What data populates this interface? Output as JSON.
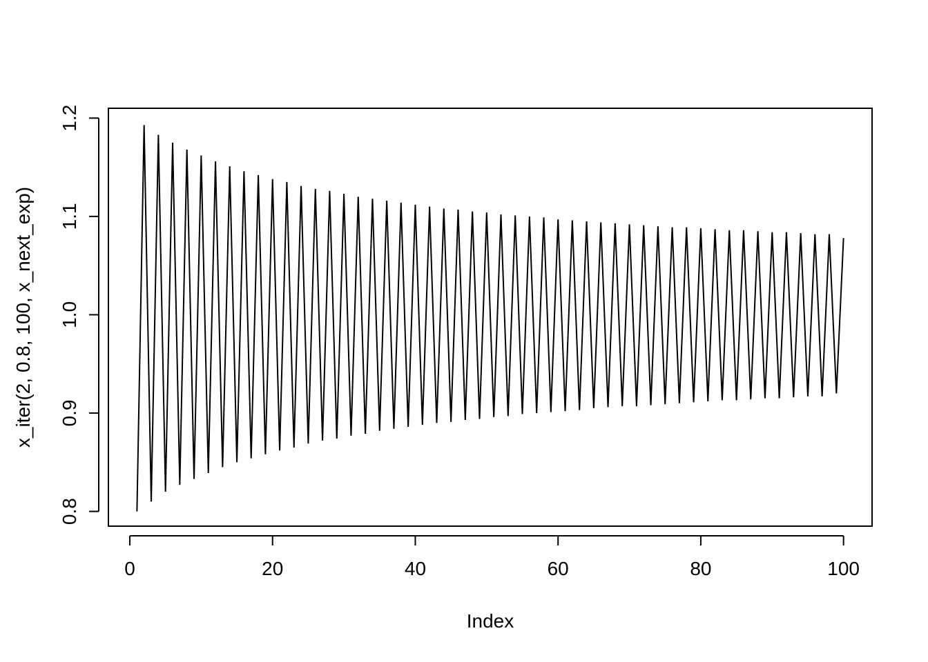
{
  "chart_data": {
    "type": "line",
    "title": "",
    "xlabel": "Index",
    "ylabel": "x_iter(2, 0.8, 100, x_next_exp)",
    "xlim": [
      -3,
      104
    ],
    "ylim": [
      0.785,
      1.21
    ],
    "xticks": [
      0,
      20,
      40,
      60,
      80,
      100
    ],
    "xtick_labels": [
      "0",
      "20",
      "40",
      "60",
      "80",
      "100"
    ],
    "yticks": [
      0.8,
      0.9,
      1.0,
      1.1,
      1.2
    ],
    "ytick_labels": [
      "0.8",
      "0.9",
      "1.0",
      "1.1",
      "1.2"
    ],
    "grid": false,
    "legend": "none",
    "line_color": "#000000",
    "series": [
      {
        "x": [
          1,
          2,
          3,
          4,
          5,
          6,
          7,
          8,
          9,
          10,
          11,
          12,
          13,
          14,
          15,
          16,
          17,
          18,
          19,
          20,
          21,
          22,
          23,
          24,
          25,
          26,
          27,
          28,
          29,
          30,
          31,
          32,
          33,
          34,
          35,
          36,
          37,
          38,
          39,
          40,
          41,
          42,
          43,
          44,
          45,
          46,
          47,
          48,
          49,
          50,
          51,
          52,
          53,
          54,
          55,
          56,
          57,
          58,
          59,
          60,
          61,
          62,
          63,
          64,
          65,
          66,
          67,
          68,
          69,
          70,
          71,
          72,
          73,
          74,
          75,
          76,
          77,
          78,
          79,
          80,
          81,
          82,
          83,
          84,
          85,
          86,
          87,
          88,
          89,
          90,
          91,
          92,
          93,
          94,
          95,
          96,
          97,
          98,
          99,
          100
        ],
        "y": [
          0.8,
          1.193,
          0.81,
          1.183,
          0.82,
          1.175,
          0.827,
          1.168,
          0.833,
          1.162,
          0.839,
          1.156,
          0.845,
          1.151,
          0.85,
          1.146,
          0.854,
          1.142,
          0.858,
          1.138,
          0.862,
          1.135,
          0.865,
          1.131,
          0.869,
          1.128,
          0.872,
          1.126,
          0.874,
          1.123,
          0.877,
          1.12,
          0.879,
          1.118,
          0.882,
          1.116,
          0.884,
          1.114,
          0.886,
          1.112,
          0.888,
          1.11,
          0.89,
          1.108,
          0.891,
          1.107,
          0.893,
          1.105,
          0.894,
          1.104,
          0.896,
          1.102,
          0.897,
          1.101,
          0.899,
          1.1,
          0.9,
          1.099,
          0.901,
          1.097,
          0.902,
          1.096,
          0.903,
          1.095,
          0.905,
          1.094,
          0.906,
          1.093,
          0.907,
          1.092,
          0.907,
          1.091,
          0.908,
          1.09,
          0.909,
          1.089,
          0.91,
          1.089,
          0.911,
          1.088,
          0.912,
          1.087,
          0.913,
          1.086,
          0.913,
          1.086,
          0.914,
          1.085,
          0.915,
          1.084,
          0.915,
          1.084,
          0.916,
          1.083,
          0.917,
          1.082,
          0.917,
          1.082,
          0.92,
          1.078
        ]
      }
    ]
  }
}
